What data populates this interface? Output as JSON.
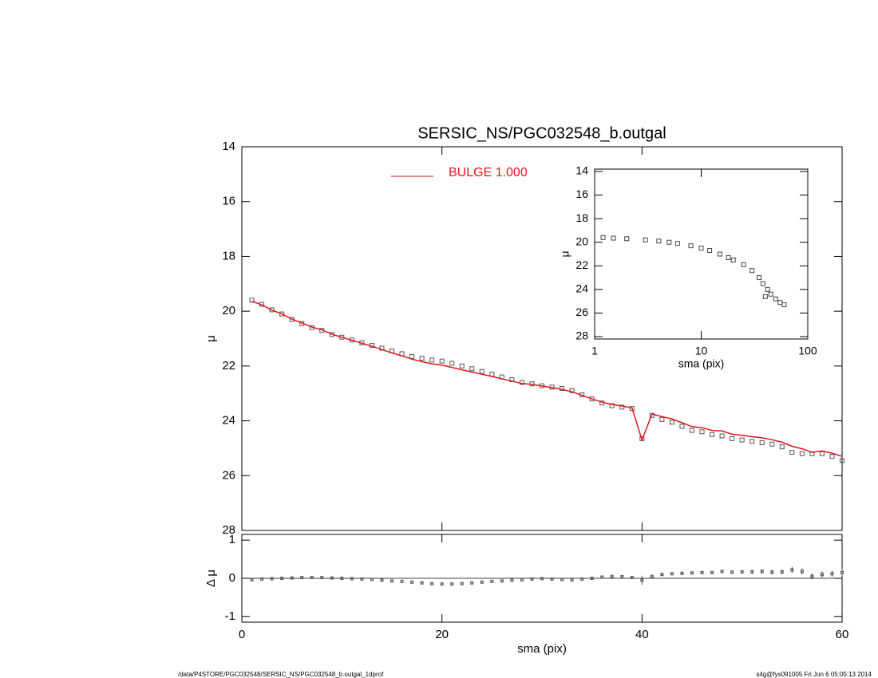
{
  "chart_data": [
    {
      "type": "line",
      "title": "SERSIC_NS/PGC032548_b.outgal",
      "y_label": "μ",
      "x": [
        1,
        2,
        3,
        4,
        5,
        6,
        7,
        8,
        9,
        10,
        11,
        12,
        13,
        14,
        15,
        16,
        17,
        18,
        19,
        20,
        21,
        22,
        23,
        24,
        25,
        26,
        27,
        28,
        29,
        30,
        31,
        32,
        33,
        34,
        35,
        36,
        37,
        38,
        39,
        40,
        41,
        42,
        43,
        44,
        45,
        46,
        47,
        48,
        49,
        50,
        51,
        52,
        53,
        54,
        55,
        56,
        57,
        58,
        59,
        60
      ],
      "series": [
        {
          "style": "markers",
          "color": "#555555",
          "values": [
            19.6,
            19.75,
            19.95,
            20.1,
            20.3,
            20.45,
            20.6,
            20.7,
            20.85,
            20.95,
            21.05,
            21.15,
            21.25,
            21.35,
            21.45,
            21.55,
            21.65,
            21.72,
            21.78,
            21.82,
            21.9,
            22.0,
            22.1,
            22.2,
            22.3,
            22.4,
            22.5,
            22.6,
            22.65,
            22.72,
            22.77,
            22.82,
            22.9,
            23.05,
            23.2,
            23.35,
            23.45,
            23.5,
            23.55,
            24.65,
            23.8,
            23.95,
            24.05,
            24.2,
            24.35,
            24.4,
            24.5,
            24.55,
            24.65,
            24.7,
            24.75,
            24.8,
            24.85,
            24.95,
            25.15,
            25.2,
            25.2,
            25.2,
            25.3,
            25.45
          ]
        },
        {
          "name": "BULGE  1.000",
          "style": "line",
          "color": "#e8141b",
          "values": [
            19.64,
            19.77,
            19.96,
            20.1,
            20.29,
            20.43,
            20.58,
            20.68,
            20.84,
            20.95,
            21.06,
            21.17,
            21.28,
            21.4,
            21.52,
            21.63,
            21.75,
            21.84,
            21.92,
            21.97,
            22.05,
            22.14,
            22.22,
            22.3,
            22.38,
            22.47,
            22.55,
            22.64,
            22.67,
            22.73,
            22.79,
            22.85,
            22.94,
            23.07,
            23.2,
            23.32,
            23.4,
            23.46,
            23.53,
            24.7,
            23.75,
            23.85,
            23.93,
            24.07,
            24.21,
            24.25,
            24.35,
            24.37,
            24.49,
            24.53,
            24.58,
            24.62,
            24.69,
            24.78,
            24.93,
            25.02,
            25.15,
            25.1,
            25.18,
            25.3
          ]
        }
      ],
      "xlim": [
        0,
        60
      ],
      "ylim": [
        28,
        14
      ],
      "yticks": [
        14,
        16,
        18,
        20,
        22,
        24,
        26,
        28
      ],
      "legend": "top-center"
    },
    {
      "type": "errorbar",
      "x_label": "sma (pix)",
      "y_label": "Δ μ",
      "color": "#555555",
      "hline": 0,
      "x": [
        1,
        2,
        3,
        4,
        5,
        6,
        7,
        8,
        9,
        10,
        11,
        12,
        13,
        14,
        15,
        16,
        17,
        18,
        19,
        20,
        21,
        22,
        23,
        24,
        25,
        26,
        27,
        28,
        29,
        30,
        31,
        32,
        33,
        34,
        35,
        36,
        37,
        38,
        39,
        40,
        41,
        42,
        43,
        44,
        45,
        46,
        47,
        48,
        49,
        50,
        51,
        52,
        53,
        54,
        55,
        56,
        57,
        58,
        59,
        60
      ],
      "values": [
        -0.04,
        -0.02,
        -0.01,
        0,
        0.01,
        0.02,
        0.02,
        0.02,
        0.01,
        0,
        -0.01,
        -0.02,
        -0.03,
        -0.05,
        -0.07,
        -0.08,
        -0.1,
        -0.12,
        -0.14,
        -0.15,
        -0.15,
        -0.14,
        -0.12,
        -0.1,
        -0.08,
        -0.07,
        -0.05,
        -0.04,
        -0.02,
        -0.01,
        -0.02,
        -0.03,
        -0.04,
        -0.02,
        0,
        0.03,
        0.05,
        0.04,
        0.02,
        -0.05,
        0.05,
        0.1,
        0.12,
        0.13,
        0.14,
        0.15,
        0.15,
        0.18,
        0.16,
        0.17,
        0.17,
        0.18,
        0.16,
        0.17,
        0.22,
        0.18,
        0.05,
        0.1,
        0.12,
        0.15
      ],
      "errors": [
        0.02,
        0.02,
        0.02,
        0.02,
        0.02,
        0.02,
        0.02,
        0.02,
        0.02,
        0.02,
        0.02,
        0.02,
        0.02,
        0.02,
        0.02,
        0.02,
        0.02,
        0.02,
        0.02,
        0.02,
        0.02,
        0.02,
        0.02,
        0.02,
        0.02,
        0.02,
        0.02,
        0.02,
        0.02,
        0.02,
        0.04,
        0.04,
        0.04,
        0.04,
        0.04,
        0.04,
        0.04,
        0.04,
        0.04,
        0.12,
        0.04,
        0.04,
        0.04,
        0.04,
        0.04,
        0.04,
        0.04,
        0.04,
        0.04,
        0.04,
        0.06,
        0.06,
        0.06,
        0.06,
        0.08,
        0.08,
        0.08,
        0.08,
        0.08,
        0.1
      ],
      "xlim": [
        0,
        60
      ],
      "xticks": [
        0,
        20,
        40,
        60
      ],
      "ylim": [
        -1.15,
        1.15
      ],
      "yticks": [
        -1,
        0,
        1
      ]
    },
    {
      "type": "scatter",
      "x_label": "sma (pix)",
      "y_label": "μ",
      "color": "#444444",
      "xscale": "log",
      "x": [
        1.2,
        1.5,
        2,
        3,
        4,
        5,
        6,
        8,
        10,
        12,
        15,
        18,
        20,
        25,
        30,
        35,
        38,
        40,
        42,
        45,
        50,
        55,
        60
      ],
      "values": [
        19.6,
        19.65,
        19.7,
        19.8,
        19.9,
        20.0,
        20.1,
        20.3,
        20.5,
        20.7,
        21.0,
        21.3,
        21.5,
        21.9,
        22.4,
        23.0,
        23.5,
        24.6,
        24.0,
        24.4,
        24.8,
        25.1,
        25.3
      ],
      "xlim": [
        1,
        100
      ],
      "xticks": [
        1,
        10,
        100
      ],
      "ylim": [
        28.2,
        13.8
      ],
      "yticks": [
        14,
        16,
        18,
        20,
        22,
        24,
        26,
        28
      ]
    }
  ],
  "footer": {
    "left": "/data/P4STORE/PGC032548/SERSIC_NS/PGC032548_b.outgal_1dprof",
    "right": "s4g@fys091005  Fri Jun  6 05:05:13 2014"
  }
}
